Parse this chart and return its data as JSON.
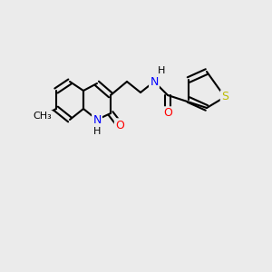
{
  "bg_color": "#ebebeb",
  "bond_color": "#000000",
  "bond_width": 1.5,
  "atom_colors": {
    "O": "#ff0000",
    "N": "#0000ff",
    "S": "#bcbc00",
    "C": "#000000",
    "H": "#000000"
  },
  "font_size": 9,
  "fig_size": [
    3.0,
    3.0
  ],
  "dpi": 100
}
